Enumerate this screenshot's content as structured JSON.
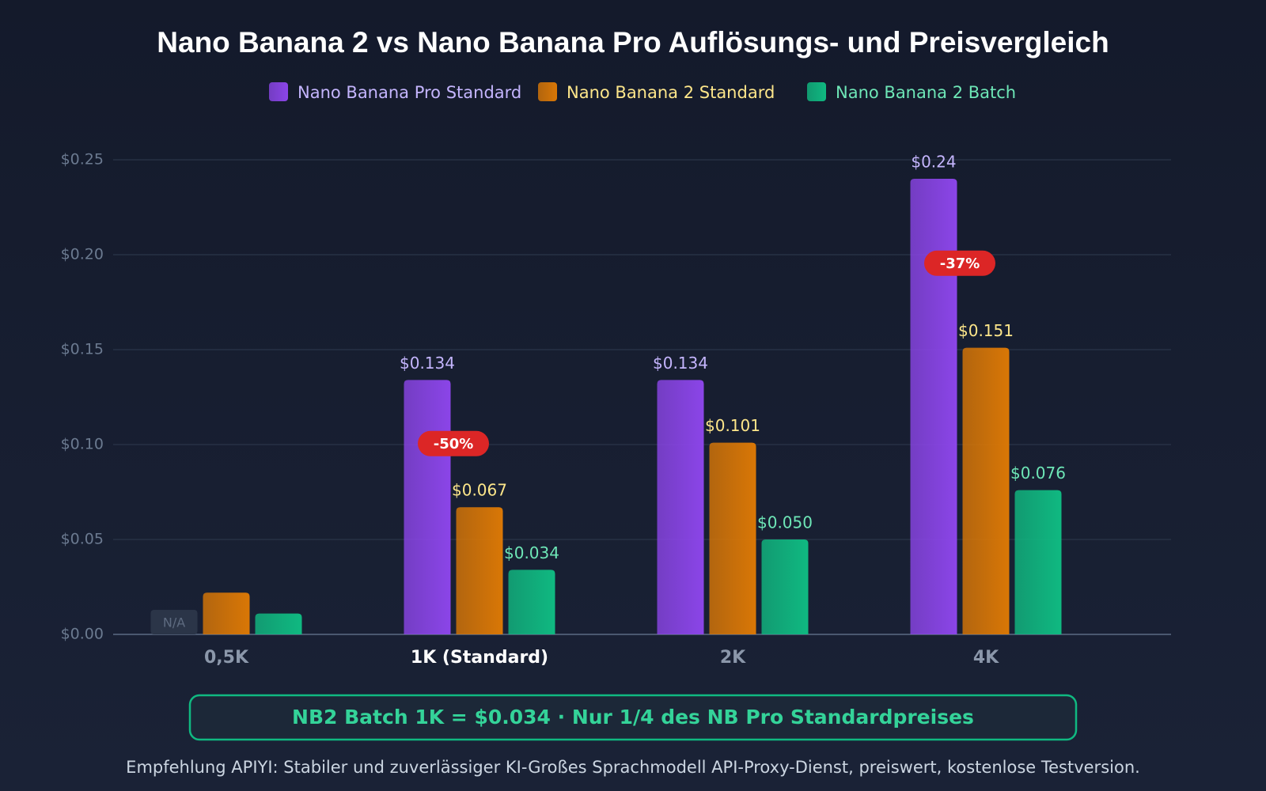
{
  "chart_data": {
    "type": "bar",
    "title": "Nano Banana 2 vs Nano Banana Pro Auflösungs- und Preisvergleich",
    "categories": [
      "0,5K",
      "1K (Standard)",
      "2K",
      "4K"
    ],
    "highlight_category": "1K (Standard)",
    "series": [
      {
        "name": "Nano Banana Pro Standard",
        "color": "#8b45e8",
        "label_color": "#c4b5fd",
        "values": [
          null,
          0.134,
          0.134,
          0.24
        ],
        "value_labels": [
          "N/A",
          "$0.134",
          "$0.134",
          "$0.24"
        ]
      },
      {
        "name": "Nano Banana 2 Standard",
        "color": "#d97706",
        "label_color": "#fde68a",
        "values": [
          0.022,
          0.067,
          0.101,
          0.151
        ],
        "value_labels": [
          null,
          "$0.067",
          "$0.101",
          "$0.151"
        ]
      },
      {
        "name": "Nano Banana 2 Batch",
        "color": "#10b981",
        "label_color": "#6ee7b7",
        "values": [
          0.011,
          0.034,
          0.05,
          0.076
        ],
        "value_labels": [
          null,
          "$0.034",
          "$0.050",
          "$0.076"
        ]
      }
    ],
    "ylim": [
      0,
      0.25
    ],
    "yticks": [
      {
        "value": 0,
        "label": "$0.00"
      },
      {
        "value": 0.05,
        "label": "$0.05"
      },
      {
        "value": 0.1,
        "label": "$0.10"
      },
      {
        "value": 0.15,
        "label": "$0.15"
      },
      {
        "value": 0.2,
        "label": "$0.20"
      },
      {
        "value": 0.25,
        "label": "$0.25"
      }
    ],
    "grid": true,
    "annotations": [
      {
        "text": "-50%",
        "category": "1K (Standard)"
      },
      {
        "text": "-37%",
        "category": "4K"
      }
    ],
    "callout": "NB2 Batch 1K = $0.034 · Nur 1/4 des NB Pro Standardpreises",
    "footer": "Empfehlung APIYI: Stabiler und zuverlässiger KI-Großes Sprachmodell API-Proxy-Dienst, preiswert, kostenlose Testversion."
  }
}
